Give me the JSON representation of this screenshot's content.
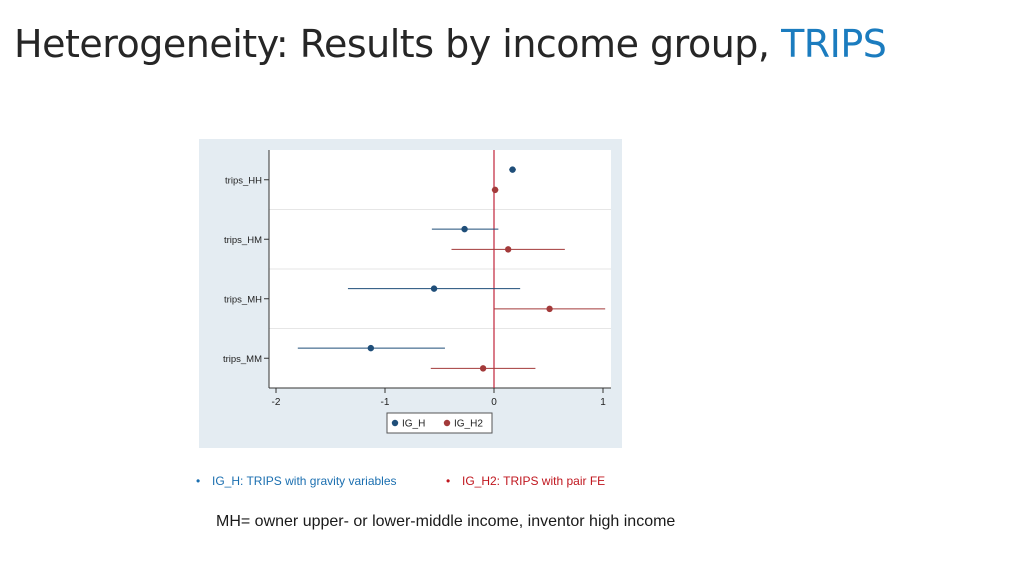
{
  "page": {
    "title_main": "Heterogeneity: Results by income group, ",
    "title_accent": "TRIPS",
    "notes": [
      {
        "bullet": "•",
        "text": "IG_H: TRIPS with gravity variables"
      },
      {
        "bullet": "•",
        "text": "IG_H2: TRIPS  with pair FE"
      }
    ],
    "footnote": "MH= owner upper- or lower-middle income, inventor high income"
  },
  "colors": {
    "ig_h": "#1f4e79",
    "ig_h2": "#a33a3a",
    "zero_line": "#c0243b",
    "plot_outer_bg": "#e4ecf2",
    "plot_bg": "#ffffff",
    "grid": "#e6e6e6",
    "accent": "#1b7cbf"
  },
  "chart_data": {
    "type": "scatter",
    "subtype": "coefficient-plot",
    "title": "",
    "xlabel": "",
    "ylabel": "",
    "xlim": [
      -2.2,
      1.1
    ],
    "xticks": [
      -2,
      -1,
      0,
      1
    ],
    "xtick_labels": [
      "-2",
      "-1",
      "0",
      "1"
    ],
    "categories": [
      "trips_HH",
      "trips_HM",
      "trips_MH",
      "trips_MM"
    ],
    "reference_line_x": 0,
    "legend": {
      "placement": "bottom-center"
    },
    "series": [
      {
        "name": "IG_H",
        "color": "#1f4e79",
        "points": [
          {
            "category": "trips_HH",
            "estimate": 0.17,
            "ci": [
              0.14,
              0.2
            ]
          },
          {
            "category": "trips_HM",
            "estimate": -0.27,
            "ci": [
              -0.57,
              0.04
            ]
          },
          {
            "category": "trips_MH",
            "estimate": -0.55,
            "ci": [
              -1.34,
              0.24
            ]
          },
          {
            "category": "trips_MM",
            "estimate": -1.13,
            "ci": [
              -1.8,
              -0.45
            ]
          }
        ]
      },
      {
        "name": "IG_H2",
        "color": "#a33a3a",
        "points": [
          {
            "category": "trips_HH",
            "estimate": 0.01,
            "ci": [
              -0.02,
              0.04
            ]
          },
          {
            "category": "trips_HM",
            "estimate": 0.13,
            "ci": [
              -0.39,
              0.65
            ]
          },
          {
            "category": "trips_MH",
            "estimate": 0.51,
            "ci": [
              0.0,
              1.02
            ]
          },
          {
            "category": "trips_MM",
            "estimate": -0.1,
            "ci": [
              -0.58,
              0.38
            ]
          }
        ]
      }
    ]
  }
}
